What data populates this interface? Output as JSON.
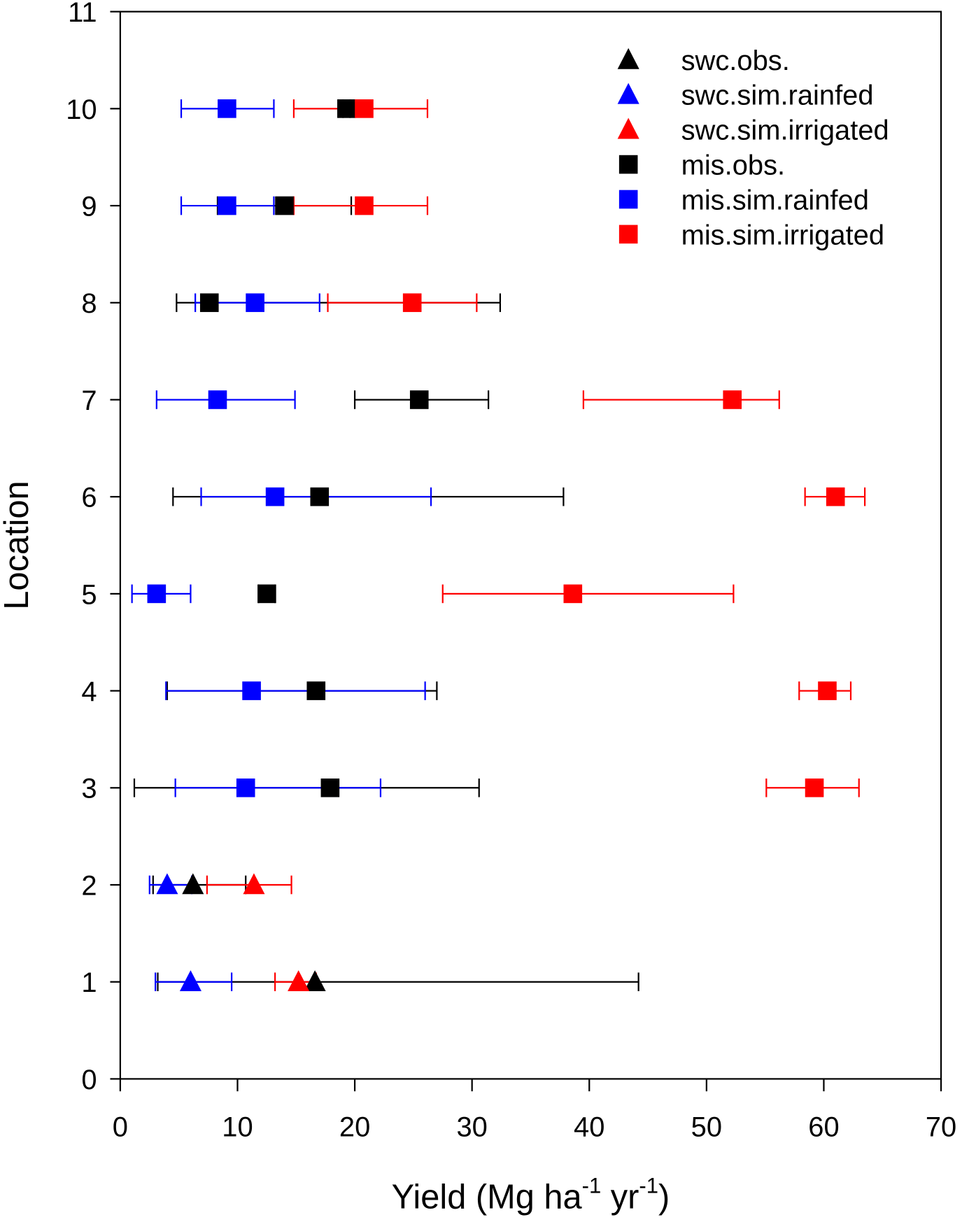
{
  "chart_data": {
    "type": "scatter",
    "title": "",
    "xlabel": "Yield (Mg ha",
    "xlabel_sup1": "-1",
    "xlabel_mid": " yr",
    "xlabel_sup2": "-1",
    "xlabel_end": ")",
    "ylabel": "Location",
    "xlim": [
      0,
      70
    ],
    "ylim": [
      0,
      11
    ],
    "xticks": [
      "0",
      "10",
      "20",
      "30",
      "40",
      "50",
      "60",
      "70"
    ],
    "yticks": [
      "0",
      "1",
      "2",
      "3",
      "4",
      "5",
      "6",
      "7",
      "8",
      "9",
      "10",
      "11"
    ],
    "grid": false,
    "legend_position": "top-right",
    "series": [
      {
        "name": "swc.obs.",
        "marker": "triangle",
        "color": "#000000",
        "points": [
          {
            "y": 1,
            "x": 16.6,
            "lo": 3.2,
            "hi": 44.2
          },
          {
            "y": 2,
            "x": 6.2,
            "lo": 2.8,
            "hi": 10.7
          }
        ]
      },
      {
        "name": "swc.sim.rainfed",
        "marker": "triangle",
        "color": "#0000ff",
        "points": [
          {
            "y": 1,
            "x": 6.0,
            "lo": 3.0,
            "hi": 9.5
          },
          {
            "y": 2,
            "x": 4.0,
            "lo": 2.5,
            "hi": 6.1
          }
        ]
      },
      {
        "name": "swc.sim.irrigated",
        "marker": "triangle",
        "color": "#ff0000",
        "points": [
          {
            "y": 1,
            "x": 15.2,
            "lo": 13.2,
            "hi": 16.7
          },
          {
            "y": 2,
            "x": 11.4,
            "lo": 7.4,
            "hi": 14.6
          }
        ]
      },
      {
        "name": "mis.obs.",
        "marker": "square",
        "color": "#000000",
        "points": [
          {
            "y": 3,
            "x": 17.9,
            "lo": 1.2,
            "hi": 30.6
          },
          {
            "y": 4,
            "x": 16.7,
            "lo": 4.0,
            "hi": 27.0
          },
          {
            "y": 5,
            "x": 12.5,
            "lo": 11.8,
            "hi": 13.2
          },
          {
            "y": 6,
            "x": 17.0,
            "lo": 4.5,
            "hi": 37.8
          },
          {
            "y": 7,
            "x": 25.5,
            "lo": 20.0,
            "hi": 31.4
          },
          {
            "y": 8,
            "x": 7.6,
            "lo": 4.8,
            "hi": 32.4
          },
          {
            "y": 9,
            "x": 14.0,
            "lo": 8.3,
            "hi": 19.7
          },
          {
            "y": 10,
            "x": 19.3,
            "lo": 19.0,
            "hi": 19.6
          }
        ]
      },
      {
        "name": "mis.sim.rainfed",
        "marker": "square",
        "color": "#0000ff",
        "points": [
          {
            "y": 3,
            "x": 10.7,
            "lo": 4.7,
            "hi": 22.2
          },
          {
            "y": 4,
            "x": 11.2,
            "lo": 3.9,
            "hi": 26.0
          },
          {
            "y": 5,
            "x": 3.1,
            "lo": 1.0,
            "hi": 6.0
          },
          {
            "y": 6,
            "x": 13.2,
            "lo": 6.9,
            "hi": 26.5
          },
          {
            "y": 7,
            "x": 8.3,
            "lo": 3.1,
            "hi": 14.9
          },
          {
            "y": 8,
            "x": 11.5,
            "lo": 6.4,
            "hi": 17.0
          },
          {
            "y": 9,
            "x": 9.1,
            "lo": 5.2,
            "hi": 13.1
          },
          {
            "y": 10,
            "x": 9.1,
            "lo": 5.2,
            "hi": 13.1
          }
        ]
      },
      {
        "name": "mis.sim.irrigated",
        "marker": "square",
        "color": "#ff0000",
        "points": [
          {
            "y": 3,
            "x": 59.2,
            "lo": 55.1,
            "hi": 63.0
          },
          {
            "y": 4,
            "x": 60.3,
            "lo": 57.9,
            "hi": 62.3
          },
          {
            "y": 5,
            "x": 38.6,
            "lo": 27.5,
            "hi": 52.3
          },
          {
            "y": 6,
            "x": 61.0,
            "lo": 58.4,
            "hi": 63.5
          },
          {
            "y": 7,
            "x": 52.2,
            "lo": 39.5,
            "hi": 56.2
          },
          {
            "y": 8,
            "x": 24.9,
            "lo": 17.7,
            "hi": 30.4
          },
          {
            "y": 9,
            "x": 20.8,
            "lo": 14.8,
            "hi": 26.2
          },
          {
            "y": 10,
            "x": 20.8,
            "lo": 14.8,
            "hi": 26.2
          }
        ]
      }
    ]
  }
}
